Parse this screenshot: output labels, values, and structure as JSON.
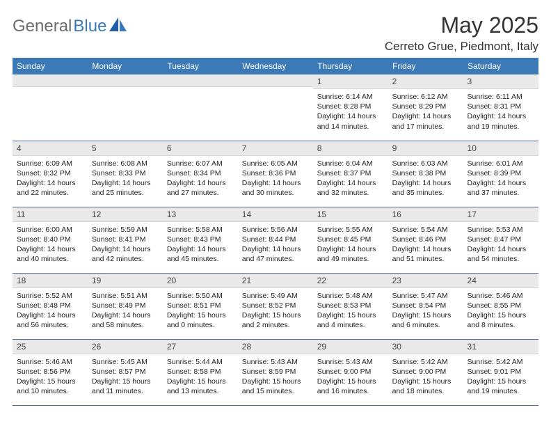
{
  "logo": {
    "part1": "General",
    "part2": "Blue"
  },
  "title": "May 2025",
  "location": "Cerreto Grue, Piedmont, Italy",
  "colors": {
    "header_bg": "#3b79b7",
    "header_text": "#ffffff",
    "daynum_bg": "#e9e9e9",
    "row_border": "#4b6a99",
    "logo_gray": "#6b6b6b",
    "logo_blue": "#3b79b7"
  },
  "daysOfWeek": [
    "Sunday",
    "Monday",
    "Tuesday",
    "Wednesday",
    "Thursday",
    "Friday",
    "Saturday"
  ],
  "weeks": [
    [
      {
        "day": "",
        "sunrise": "",
        "sunset": "",
        "daylight": ""
      },
      {
        "day": "",
        "sunrise": "",
        "sunset": "",
        "daylight": ""
      },
      {
        "day": "",
        "sunrise": "",
        "sunset": "",
        "daylight": ""
      },
      {
        "day": "",
        "sunrise": "",
        "sunset": "",
        "daylight": ""
      },
      {
        "day": "1",
        "sunrise": "Sunrise: 6:14 AM",
        "sunset": "Sunset: 8:28 PM",
        "daylight": "Daylight: 14 hours and 14 minutes."
      },
      {
        "day": "2",
        "sunrise": "Sunrise: 6:12 AM",
        "sunset": "Sunset: 8:29 PM",
        "daylight": "Daylight: 14 hours and 17 minutes."
      },
      {
        "day": "3",
        "sunrise": "Sunrise: 6:11 AM",
        "sunset": "Sunset: 8:31 PM",
        "daylight": "Daylight: 14 hours and 19 minutes."
      }
    ],
    [
      {
        "day": "4",
        "sunrise": "Sunrise: 6:09 AM",
        "sunset": "Sunset: 8:32 PM",
        "daylight": "Daylight: 14 hours and 22 minutes."
      },
      {
        "day": "5",
        "sunrise": "Sunrise: 6:08 AM",
        "sunset": "Sunset: 8:33 PM",
        "daylight": "Daylight: 14 hours and 25 minutes."
      },
      {
        "day": "6",
        "sunrise": "Sunrise: 6:07 AM",
        "sunset": "Sunset: 8:34 PM",
        "daylight": "Daylight: 14 hours and 27 minutes."
      },
      {
        "day": "7",
        "sunrise": "Sunrise: 6:05 AM",
        "sunset": "Sunset: 8:36 PM",
        "daylight": "Daylight: 14 hours and 30 minutes."
      },
      {
        "day": "8",
        "sunrise": "Sunrise: 6:04 AM",
        "sunset": "Sunset: 8:37 PM",
        "daylight": "Daylight: 14 hours and 32 minutes."
      },
      {
        "day": "9",
        "sunrise": "Sunrise: 6:03 AM",
        "sunset": "Sunset: 8:38 PM",
        "daylight": "Daylight: 14 hours and 35 minutes."
      },
      {
        "day": "10",
        "sunrise": "Sunrise: 6:01 AM",
        "sunset": "Sunset: 8:39 PM",
        "daylight": "Daylight: 14 hours and 37 minutes."
      }
    ],
    [
      {
        "day": "11",
        "sunrise": "Sunrise: 6:00 AM",
        "sunset": "Sunset: 8:40 PM",
        "daylight": "Daylight: 14 hours and 40 minutes."
      },
      {
        "day": "12",
        "sunrise": "Sunrise: 5:59 AM",
        "sunset": "Sunset: 8:41 PM",
        "daylight": "Daylight: 14 hours and 42 minutes."
      },
      {
        "day": "13",
        "sunrise": "Sunrise: 5:58 AM",
        "sunset": "Sunset: 8:43 PM",
        "daylight": "Daylight: 14 hours and 45 minutes."
      },
      {
        "day": "14",
        "sunrise": "Sunrise: 5:56 AM",
        "sunset": "Sunset: 8:44 PM",
        "daylight": "Daylight: 14 hours and 47 minutes."
      },
      {
        "day": "15",
        "sunrise": "Sunrise: 5:55 AM",
        "sunset": "Sunset: 8:45 PM",
        "daylight": "Daylight: 14 hours and 49 minutes."
      },
      {
        "day": "16",
        "sunrise": "Sunrise: 5:54 AM",
        "sunset": "Sunset: 8:46 PM",
        "daylight": "Daylight: 14 hours and 51 minutes."
      },
      {
        "day": "17",
        "sunrise": "Sunrise: 5:53 AM",
        "sunset": "Sunset: 8:47 PM",
        "daylight": "Daylight: 14 hours and 54 minutes."
      }
    ],
    [
      {
        "day": "18",
        "sunrise": "Sunrise: 5:52 AM",
        "sunset": "Sunset: 8:48 PM",
        "daylight": "Daylight: 14 hours and 56 minutes."
      },
      {
        "day": "19",
        "sunrise": "Sunrise: 5:51 AM",
        "sunset": "Sunset: 8:49 PM",
        "daylight": "Daylight: 14 hours and 58 minutes."
      },
      {
        "day": "20",
        "sunrise": "Sunrise: 5:50 AM",
        "sunset": "Sunset: 8:51 PM",
        "daylight": "Daylight: 15 hours and 0 minutes."
      },
      {
        "day": "21",
        "sunrise": "Sunrise: 5:49 AM",
        "sunset": "Sunset: 8:52 PM",
        "daylight": "Daylight: 15 hours and 2 minutes."
      },
      {
        "day": "22",
        "sunrise": "Sunrise: 5:48 AM",
        "sunset": "Sunset: 8:53 PM",
        "daylight": "Daylight: 15 hours and 4 minutes."
      },
      {
        "day": "23",
        "sunrise": "Sunrise: 5:47 AM",
        "sunset": "Sunset: 8:54 PM",
        "daylight": "Daylight: 15 hours and 6 minutes."
      },
      {
        "day": "24",
        "sunrise": "Sunrise: 5:46 AM",
        "sunset": "Sunset: 8:55 PM",
        "daylight": "Daylight: 15 hours and 8 minutes."
      }
    ],
    [
      {
        "day": "25",
        "sunrise": "Sunrise: 5:46 AM",
        "sunset": "Sunset: 8:56 PM",
        "daylight": "Daylight: 15 hours and 10 minutes."
      },
      {
        "day": "26",
        "sunrise": "Sunrise: 5:45 AM",
        "sunset": "Sunset: 8:57 PM",
        "daylight": "Daylight: 15 hours and 11 minutes."
      },
      {
        "day": "27",
        "sunrise": "Sunrise: 5:44 AM",
        "sunset": "Sunset: 8:58 PM",
        "daylight": "Daylight: 15 hours and 13 minutes."
      },
      {
        "day": "28",
        "sunrise": "Sunrise: 5:43 AM",
        "sunset": "Sunset: 8:59 PM",
        "daylight": "Daylight: 15 hours and 15 minutes."
      },
      {
        "day": "29",
        "sunrise": "Sunrise: 5:43 AM",
        "sunset": "Sunset: 9:00 PM",
        "daylight": "Daylight: 15 hours and 16 minutes."
      },
      {
        "day": "30",
        "sunrise": "Sunrise: 5:42 AM",
        "sunset": "Sunset: 9:00 PM",
        "daylight": "Daylight: 15 hours and 18 minutes."
      },
      {
        "day": "31",
        "sunrise": "Sunrise: 5:42 AM",
        "sunset": "Sunset: 9:01 PM",
        "daylight": "Daylight: 15 hours and 19 minutes."
      }
    ]
  ]
}
